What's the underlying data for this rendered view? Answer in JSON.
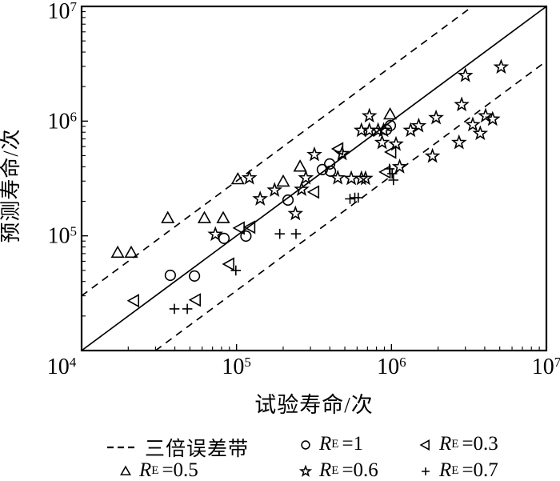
{
  "colors": {
    "foreground": "#000000",
    "background": "#ffffff"
  },
  "chart_data": {
    "type": "scatter",
    "xlabel": "试验寿命/次",
    "ylabel": "预测寿命/次",
    "xscale": "log",
    "yscale": "log",
    "xlim": [
      10000,
      10000000
    ],
    "ylim": [
      10000,
      10000000
    ],
    "tick_exponents": [
      4,
      5,
      6,
      7
    ],
    "x_tick_labels": [
      "10^4",
      "10^5",
      "10^6",
      "10^7"
    ],
    "y_tick_labels": [
      "10^4",
      "10^5",
      "10^6",
      "10^7"
    ],
    "grid": false,
    "reference_lines": [
      {
        "name": "equal-life-line y=x",
        "style": "solid",
        "slope": 1
      },
      {
        "name": "three-times-error-upper y=3x",
        "style": "dashed",
        "slope": 3
      },
      {
        "name": "three-times-error-lower y=x/3",
        "style": "dashed",
        "slope": 0.3333
      }
    ],
    "series": [
      {
        "id": "re-05",
        "marker": "triangle-up",
        "label": {
          "symbol": "R",
          "subscript": "E",
          "value": "=0.5"
        },
        "points": [
          [
            17100,
            71000
          ],
          [
            20900,
            71000
          ],
          [
            36000,
            142000
          ],
          [
            62000,
            142000
          ],
          [
            82000,
            142000
          ],
          [
            102000,
            310000
          ],
          [
            200000,
            296000
          ],
          [
            257000,
            400000
          ],
          [
            980000,
            1140000
          ]
        ]
      },
      {
        "id": "re-1",
        "marker": "circle",
        "label": {
          "symbol": "R",
          "subscript": "E",
          "value": "=1"
        },
        "points": [
          [
            37400,
            45300
          ],
          [
            53500,
            44600
          ],
          [
            83000,
            95000
          ],
          [
            115000,
            99500
          ],
          [
            215000,
            205000
          ],
          [
            358000,
            378000
          ],
          [
            399000,
            423000
          ],
          [
            404000,
            366000
          ],
          [
            927000,
            843000
          ],
          [
            984000,
            914000
          ]
        ]
      },
      {
        "id": "re-03",
        "marker": "triangle-left",
        "label": {
          "symbol": "R",
          "subscript": "E",
          "value": "=0.3"
        },
        "points": [
          [
            21900,
            27200
          ],
          [
            54700,
            27600
          ],
          [
            90000,
            56700
          ],
          [
            105000,
            117000
          ],
          [
            123000,
            119000
          ],
          [
            318000,
            241000
          ],
          [
            455000,
            573000
          ],
          [
            920000,
            360000
          ],
          [
            1000000,
            537000
          ]
        ]
      },
      {
        "id": "re-06",
        "marker": "star",
        "label": {
          "symbol": "R",
          "subscript": "E",
          "value": "=0.6"
        },
        "points": [
          [
            73000,
            103000
          ],
          [
            121000,
            320000
          ],
          [
            142000,
            210000
          ],
          [
            176000,
            250000
          ],
          [
            240000,
            156000
          ],
          [
            263000,
            254000
          ],
          [
            280000,
            320000
          ],
          [
            318000,
            510000
          ],
          [
            450000,
            320000
          ],
          [
            480000,
            520000
          ],
          [
            550000,
            316000
          ],
          [
            640000,
            316000
          ],
          [
            680000,
            316000
          ],
          [
            640000,
            830000
          ],
          [
            720000,
            830000
          ],
          [
            820000,
            830000
          ],
          [
            890000,
            830000
          ],
          [
            720000,
            1110000
          ],
          [
            870000,
            650000
          ],
          [
            1070000,
            630000
          ],
          [
            1130000,
            400000
          ],
          [
            1330000,
            830000
          ],
          [
            1500000,
            910000
          ],
          [
            1840000,
            495000
          ],
          [
            1940000,
            1070000
          ],
          [
            2730000,
            650000
          ],
          [
            2840000,
            1390000
          ],
          [
            3000000,
            2500000
          ],
          [
            3350000,
            930000
          ],
          [
            3740000,
            780000
          ],
          [
            4050000,
            1110000
          ],
          [
            4500000,
            1040000
          ],
          [
            5100000,
            2960000
          ]
        ]
      },
      {
        "id": "re-07",
        "marker": "plus",
        "label": {
          "symbol": "R",
          "subscript": "E",
          "value": "=0.7"
        },
        "points": [
          [
            39700,
            23100
          ],
          [
            48100,
            23100
          ],
          [
            99000,
            49900
          ],
          [
            190000,
            104000
          ],
          [
            242000,
            104000
          ],
          [
            540000,
            210000
          ],
          [
            580000,
            215000
          ],
          [
            610000,
            215000
          ],
          [
            970000,
            384000
          ],
          [
            1010000,
            348000
          ],
          [
            1030000,
            306000
          ]
        ]
      }
    ]
  },
  "legend": {
    "items": [
      {
        "marker": "dashed-line",
        "text": "三倍误差带"
      },
      {
        "marker": "circle",
        "symbol": "R",
        "subscript": "E",
        "value": "=1"
      },
      {
        "marker": "triangle-left",
        "symbol": "R",
        "subscript": "E",
        "value": "=0.3"
      },
      {
        "marker": "triangle-up",
        "symbol": "R",
        "subscript": "E",
        "value": "=0.5"
      },
      {
        "marker": "star",
        "symbol": "R",
        "subscript": "E",
        "value": "=0.6"
      },
      {
        "marker": "plus",
        "symbol": "R",
        "subscript": "E",
        "value": "=0.7"
      }
    ]
  }
}
